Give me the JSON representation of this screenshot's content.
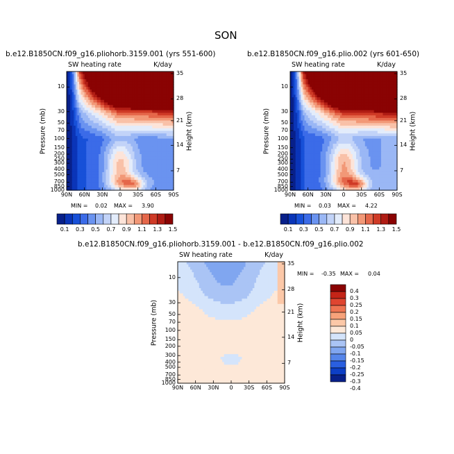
{
  "figure": {
    "title": "SON",
    "colors": {
      "full": [
        "#08208a",
        "#0a35b8",
        "#1750d8",
        "#3b6be8",
        "#6a93f0",
        "#9ab7f5",
        "#c2d3f8",
        "#e3ecfb",
        "#fde4d9",
        "#f9c1a8",
        "#f29877",
        "#e5674a",
        "#cf3a26",
        "#b01c14",
        "#8a0303"
      ],
      "diff": [
        "#08208a",
        "#0d3fc6",
        "#2a5fe0",
        "#5585ea",
        "#80a6f0",
        "#aac4f5",
        "#d4e4fb",
        "#fde8d8",
        "#fcc8a8",
        "#f7a27a",
        "#ee7452",
        "#df4530",
        "#c42417",
        "#8a0303"
      ]
    }
  },
  "chart_data": [
    {
      "id": "top-left",
      "type": "heatmap",
      "title": "b.e12.B1850CN.f09_g16.pliohorb.3159.001 (yrs 551-600)",
      "left_label": "SW heating rate",
      "right_label": "K/day",
      "ylabel": "Pressure (mb)",
      "ylabel_right": "Height (km)",
      "x_ticks": [
        "90N",
        "60N",
        "30N",
        "0",
        "30S",
        "60S",
        "90S"
      ],
      "y_ticks": [
        "10",
        "30",
        "50",
        "70",
        "100",
        "150",
        "200",
        "250",
        "300",
        "400",
        "500",
        "700",
        "850",
        "1000"
      ],
      "y_ticks_right": [
        "35",
        "28",
        "21",
        "14",
        "7"
      ],
      "min_label": "MIN =",
      "min_value": "0.02",
      "max_label": "MAX =",
      "max_value": "3.90",
      "colorbar_labels": [
        "0.1",
        "0.3",
        "0.5",
        "0.7",
        "0.9",
        "1.1",
        "1.3",
        "1.5"
      ],
      "levels": [
        0.1,
        0.2,
        0.3,
        0.4,
        0.5,
        0.6,
        0.7,
        0.8,
        0.9,
        1.0,
        1.1,
        1.2,
        1.3,
        1.4,
        1.5
      ]
    },
    {
      "id": "top-right",
      "type": "heatmap",
      "title": "b.e12.B1850CN.f09_g16.plio.002 (yrs 601-650)",
      "left_label": "SW heating rate",
      "right_label": "K/day",
      "ylabel": "Pressure (mb)",
      "ylabel_right": "Height (km)",
      "x_ticks": [
        "90N",
        "60N",
        "30N",
        "0",
        "30S",
        "60S",
        "90S"
      ],
      "y_ticks": [
        "10",
        "30",
        "50",
        "70",
        "100",
        "150",
        "200",
        "250",
        "300",
        "400",
        "500",
        "700",
        "850",
        "1000"
      ],
      "y_ticks_right": [
        "35",
        "28",
        "21",
        "14",
        "7"
      ],
      "min_label": "MIN =",
      "min_value": "0.03",
      "max_label": "MAX =",
      "max_value": "4.22",
      "colorbar_labels": [
        "0.1",
        "0.3",
        "0.5",
        "0.7",
        "0.9",
        "1.1",
        "1.3",
        "1.5"
      ],
      "levels": [
        0.1,
        0.2,
        0.3,
        0.4,
        0.5,
        0.6,
        0.7,
        0.8,
        0.9,
        1.0,
        1.1,
        1.2,
        1.3,
        1.4,
        1.5
      ]
    },
    {
      "id": "bottom-diff",
      "type": "heatmap",
      "title": "b.e12.B1850CN.f09_g16.pliohorb.3159.001 - b.e12.B1850CN.f09_g16.plio.002",
      "left_label": "SW heating rate",
      "right_label": "K/day",
      "ylabel": "Pressure (mb)",
      "ylabel_right": "Height (km)",
      "x_ticks": [
        "90N",
        "60N",
        "30N",
        "0",
        "30S",
        "60S",
        "90S"
      ],
      "y_ticks": [
        "10",
        "30",
        "50",
        "70",
        "100",
        "150",
        "200",
        "300",
        "400",
        "500",
        "700",
        "850",
        "1000"
      ],
      "y_ticks_right": [
        "35",
        "28",
        "21",
        "14",
        "7"
      ],
      "min_label": "MIN =",
      "min_value": "-0.35",
      "max_label": "MAX =",
      "max_value": "0.04",
      "colorbar_labels": [
        "0.4",
        "0.3",
        "0.25",
        "0.2",
        "0.15",
        "0.1",
        "0.05",
        "0",
        "-0.05",
        "-0.1",
        "-0.15",
        "-0.2",
        "-0.25",
        "-0.3",
        "-0.4"
      ],
      "levels": [
        -0.4,
        -0.3,
        -0.25,
        -0.2,
        -0.15,
        -0.1,
        -0.05,
        0,
        0.05,
        0.1,
        0.15,
        0.2,
        0.25,
        0.3,
        0.4
      ]
    }
  ]
}
